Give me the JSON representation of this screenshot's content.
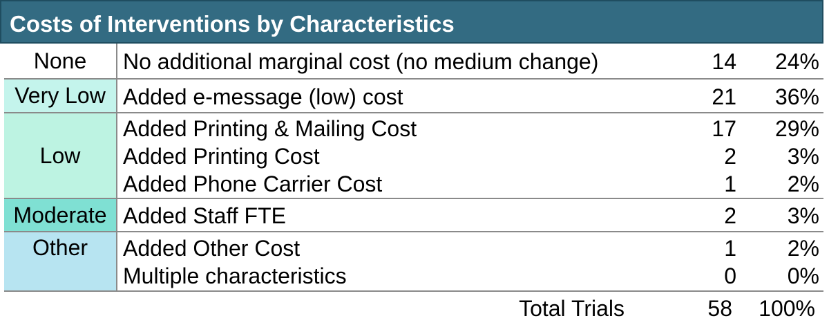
{
  "title": "Costs of Interventions by Characteristics",
  "groups": [
    {
      "category": "None",
      "rows": [
        {
          "description": "No additional marginal cost (no medium change)",
          "count": "14",
          "percent": "24%"
        }
      ]
    },
    {
      "category": "Very Low",
      "rows": [
        {
          "description": "Added e-message (low) cost",
          "count": "21",
          "percent": "36%"
        }
      ]
    },
    {
      "category": "Low",
      "rows": [
        {
          "description": "Added Printing & Mailing Cost",
          "count": "17",
          "percent": "29%"
        },
        {
          "description": "Added Printing Cost",
          "count": "2",
          "percent": "3%"
        },
        {
          "description": "Added Phone Carrier Cost",
          "count": "1",
          "percent": "2%"
        }
      ]
    },
    {
      "category": "Moderate",
      "rows": [
        {
          "description": "Added Staff FTE",
          "count": "2",
          "percent": "3%"
        }
      ]
    },
    {
      "category": "Other",
      "rows": [
        {
          "description": "Added Other Cost",
          "count": "1",
          "percent": "2%"
        },
        {
          "description": "Multiple characteristics",
          "count": "0",
          "percent": "0%"
        }
      ]
    }
  ],
  "total": {
    "label": "Total Trials",
    "count": "58",
    "percent": "100%"
  },
  "colors": {
    "title_bg": "#336b82",
    "none_bg": "#ffffff",
    "very_low_bg": "#c4f4ec",
    "low_bg": "#bdf3e2",
    "moderate_bg": "#7fe0d3",
    "other_bg": "#b7e4f1"
  }
}
